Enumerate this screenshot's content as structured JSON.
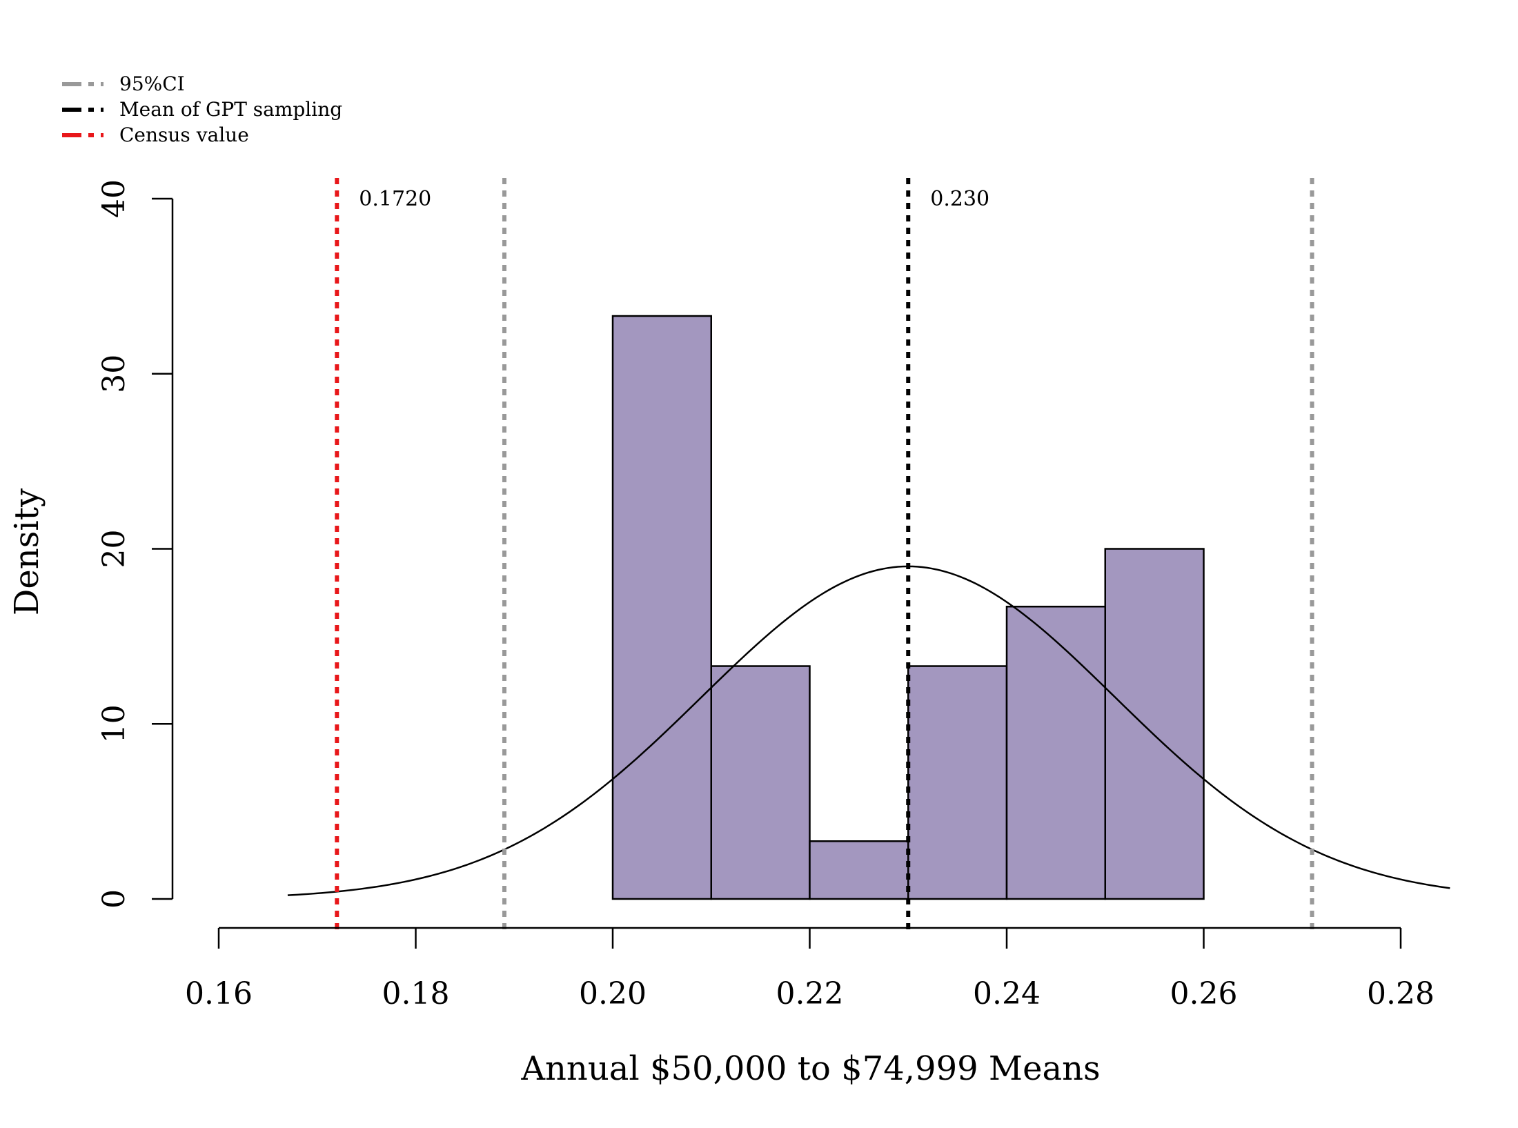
{
  "chart_data": {
    "type": "bar",
    "subtype": "histogram-with-normal-curve",
    "title": "",
    "xlabel": "Annual $50,000 to $74,999 Means",
    "ylabel": "Density",
    "xlim": [
      0.16,
      0.28
    ],
    "ylim": [
      0,
      40
    ],
    "x_ticks": [
      0.16,
      0.18,
      0.2,
      0.22,
      0.24,
      0.26,
      0.28
    ],
    "x_tick_labels": [
      "0.16",
      "0.18",
      "0.20",
      "0.22",
      "0.24",
      "0.26",
      "0.28"
    ],
    "y_ticks": [
      0,
      10,
      20,
      30,
      40
    ],
    "y_tick_labels": [
      "0",
      "10",
      "20",
      "30",
      "40"
    ],
    "bins": [
      {
        "start": 0.2,
        "end": 0.21,
        "density": 33.3
      },
      {
        "start": 0.21,
        "end": 0.22,
        "density": 13.3
      },
      {
        "start": 0.22,
        "end": 0.23,
        "density": 3.3
      },
      {
        "start": 0.23,
        "end": 0.24,
        "density": 13.3
      },
      {
        "start": 0.24,
        "end": 0.25,
        "density": 16.7
      },
      {
        "start": 0.25,
        "end": 0.26,
        "density": 20.0
      }
    ],
    "bar_color": "#a397bf",
    "normal_curve": {
      "mean": 0.23,
      "sd": 0.021,
      "x_range": [
        0.167,
        0.285
      ],
      "color": "#000000"
    },
    "vlines": [
      {
        "name": "census",
        "x": 0.172,
        "color": "#e8171a",
        "label": "0.1720"
      },
      {
        "name": "ci-lower",
        "x": 0.189,
        "color": "#999999",
        "label": ""
      },
      {
        "name": "mean",
        "x": 0.23,
        "color": "#000000",
        "label": "0.230"
      },
      {
        "name": "ci-upper",
        "x": 0.271,
        "color": "#999999",
        "label": ""
      }
    ],
    "legend": {
      "position": "top-left",
      "entries": [
        {
          "label": "95%CI",
          "color": "#999999"
        },
        {
          "label": "Mean of GPT sampling",
          "color": "#000000"
        },
        {
          "label": "Census value",
          "color": "#e8171a"
        }
      ]
    }
  }
}
